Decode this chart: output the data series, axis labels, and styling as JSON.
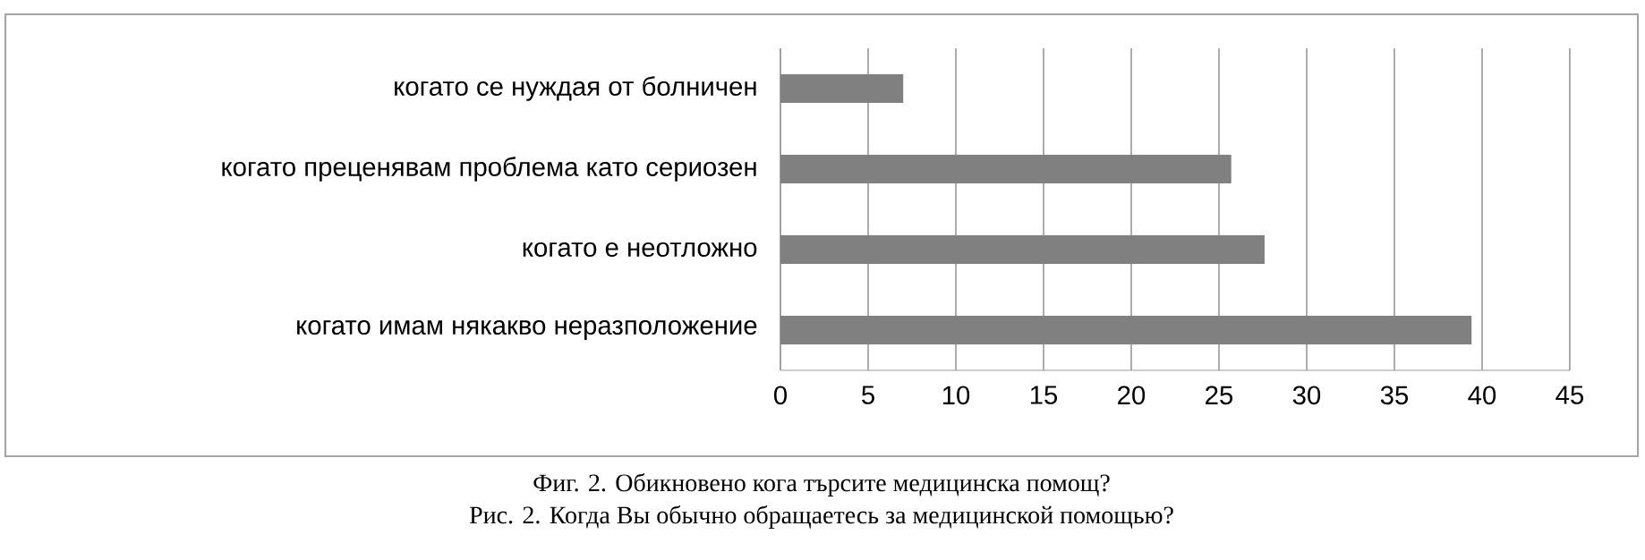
{
  "chart_data": {
    "type": "bar",
    "orientation": "horizontal",
    "categories": [
      "когато се нуждая от болничен",
      "когато преценявам проблема като сериозен",
      "когато е неотложно",
      "когато имам някакво неразположение"
    ],
    "values": [
      7,
      25.7,
      27.6,
      39.4
    ],
    "color": "#808080",
    "xlim": [
      0,
      45
    ],
    "xticks": [
      0,
      5,
      10,
      15,
      20,
      25,
      30,
      35,
      40,
      45
    ],
    "grid": "x",
    "annotations": [
      "Фиг. 2. Обикновено кога търсите медицинска помощ?",
      "Рис. 2. Когда Вы обычно обращаетесь за медицинской помощью?"
    ]
  }
}
